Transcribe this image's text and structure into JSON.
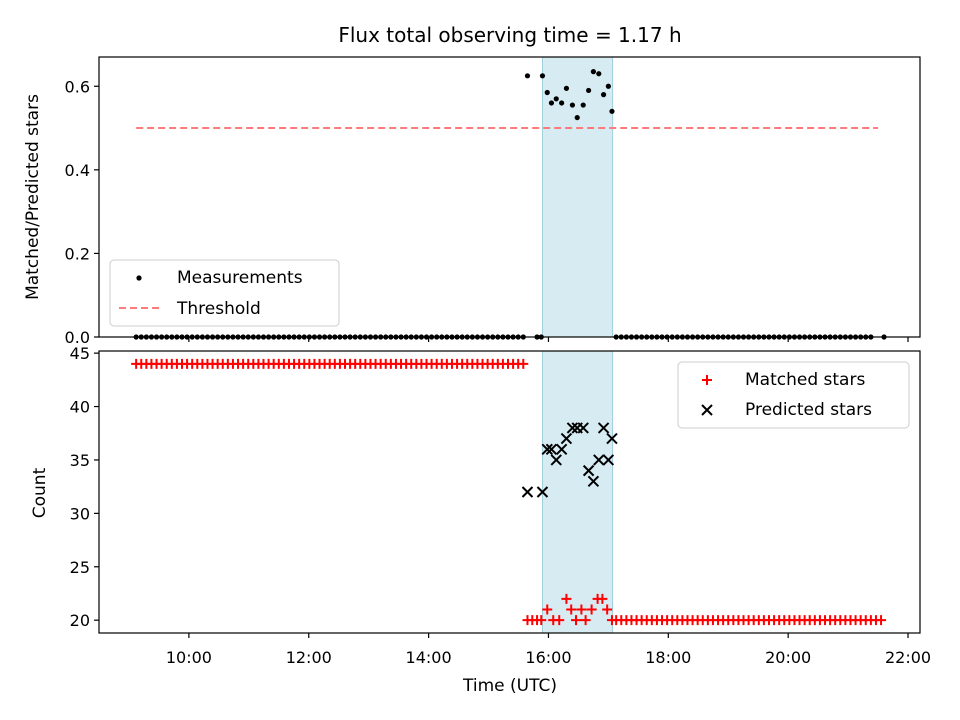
{
  "chart_data": [
    {
      "type": "scatter",
      "title": "Flux total observing time = 1.17 h",
      "ylabel": "Matched/Predicted stars",
      "xlabel": "",
      "x_unit": "hours (UTC)",
      "xlim": [
        8.5,
        22.2
      ],
      "ylim": [
        0.0,
        0.67
      ],
      "yticks": [
        0.0,
        0.2,
        0.4,
        0.6
      ],
      "ytick_labels": [
        "0.0",
        "0.2",
        "0.4",
        "0.6"
      ],
      "grid": false,
      "legend_position": "lower-left",
      "highlight_span": {
        "x0": 15.9,
        "x1": 17.07,
        "color": "#add8e6"
      },
      "series": [
        {
          "name": "Measurements",
          "marker": "dot",
          "color": "#000000",
          "zero_run": {
            "x_start": 9.12,
            "x_end": 15.62,
            "step": 0.085,
            "y": 0.0
          },
          "zero_run_2": {
            "x_start": 17.13,
            "x_end": 21.45,
            "step": 0.085,
            "y": 0.0
          },
          "points": [
            {
              "x": 15.81,
              "y": 0.0
            },
            {
              "x": 15.88,
              "y": 0.0
            },
            {
              "x": 21.6,
              "y": 0.0
            },
            {
              "x": 15.65,
              "y": 0.625
            },
            {
              "x": 15.9,
              "y": 0.625
            },
            {
              "x": 15.98,
              "y": 0.585
            },
            {
              "x": 16.05,
              "y": 0.56
            },
            {
              "x": 16.13,
              "y": 0.57
            },
            {
              "x": 16.22,
              "y": 0.56
            },
            {
              "x": 16.3,
              "y": 0.595
            },
            {
              "x": 16.4,
              "y": 0.555
            },
            {
              "x": 16.48,
              "y": 0.525
            },
            {
              "x": 16.58,
              "y": 0.555
            },
            {
              "x": 16.67,
              "y": 0.59
            },
            {
              "x": 16.75,
              "y": 0.635
            },
            {
              "x": 16.84,
              "y": 0.63
            },
            {
              "x": 16.92,
              "y": 0.58
            },
            {
              "x": 17.0,
              "y": 0.6
            },
            {
              "x": 17.06,
              "y": 0.54
            }
          ]
        },
        {
          "name": "Threshold",
          "marker": "dashed-line",
          "color": "#ff7b7b",
          "x": [
            9.12,
            21.5
          ],
          "y": [
            0.5,
            0.5
          ]
        }
      ]
    },
    {
      "type": "scatter",
      "title": "",
      "ylabel": "Count",
      "xlabel": "Time (UTC)",
      "xlim": [
        8.5,
        22.2
      ],
      "ylim": [
        18.8,
        45.2
      ],
      "yticks": [
        20,
        25,
        30,
        35,
        40,
        45
      ],
      "ytick_labels": [
        "20",
        "25",
        "30",
        "35",
        "40",
        "45"
      ],
      "xticks": [
        10,
        12,
        14,
        16,
        18,
        20,
        22
      ],
      "xtick_labels": [
        "10:00",
        "12:00",
        "14:00",
        "16:00",
        "18:00",
        "20:00",
        "22:00"
      ],
      "grid": false,
      "legend_position": "top-right",
      "highlight_span": {
        "x0": 15.9,
        "x1": 17.07,
        "color": "#add8e6"
      },
      "series": [
        {
          "name": "Matched stars",
          "marker": "plus",
          "color": "#ff0000",
          "run_a": {
            "x_start": 9.12,
            "x_end": 15.62,
            "step": 0.085,
            "y": 44
          },
          "run_b": {
            "x_start": 17.13,
            "x_end": 21.6,
            "step": 0.085,
            "y": 20
          },
          "points": [
            {
              "x": 15.65,
              "y": 20
            },
            {
              "x": 15.73,
              "y": 20
            },
            {
              "x": 15.81,
              "y": 20
            },
            {
              "x": 15.88,
              "y": 20
            },
            {
              "x": 15.98,
              "y": 21
            },
            {
              "x": 16.08,
              "y": 20
            },
            {
              "x": 16.18,
              "y": 20
            },
            {
              "x": 16.3,
              "y": 22
            },
            {
              "x": 16.38,
              "y": 21
            },
            {
              "x": 16.46,
              "y": 20
            },
            {
              "x": 16.55,
              "y": 21
            },
            {
              "x": 16.62,
              "y": 20
            },
            {
              "x": 16.72,
              "y": 21
            },
            {
              "x": 16.82,
              "y": 22
            },
            {
              "x": 16.9,
              "y": 22
            },
            {
              "x": 16.98,
              "y": 21
            },
            {
              "x": 17.06,
              "y": 20
            }
          ]
        },
        {
          "name": "Predicted stars",
          "marker": "x",
          "color": "#000000",
          "points": [
            {
              "x": 15.65,
              "y": 32
            },
            {
              "x": 15.9,
              "y": 32
            },
            {
              "x": 15.98,
              "y": 36
            },
            {
              "x": 16.05,
              "y": 36
            },
            {
              "x": 16.13,
              "y": 35
            },
            {
              "x": 16.22,
              "y": 36
            },
            {
              "x": 16.3,
              "y": 37
            },
            {
              "x": 16.4,
              "y": 38
            },
            {
              "x": 16.48,
              "y": 38
            },
            {
              "x": 16.58,
              "y": 38
            },
            {
              "x": 16.67,
              "y": 34
            },
            {
              "x": 16.75,
              "y": 33
            },
            {
              "x": 16.84,
              "y": 35
            },
            {
              "x": 16.92,
              "y": 38
            },
            {
              "x": 17.0,
              "y": 35
            },
            {
              "x": 17.06,
              "y": 37
            }
          ]
        }
      ]
    }
  ]
}
